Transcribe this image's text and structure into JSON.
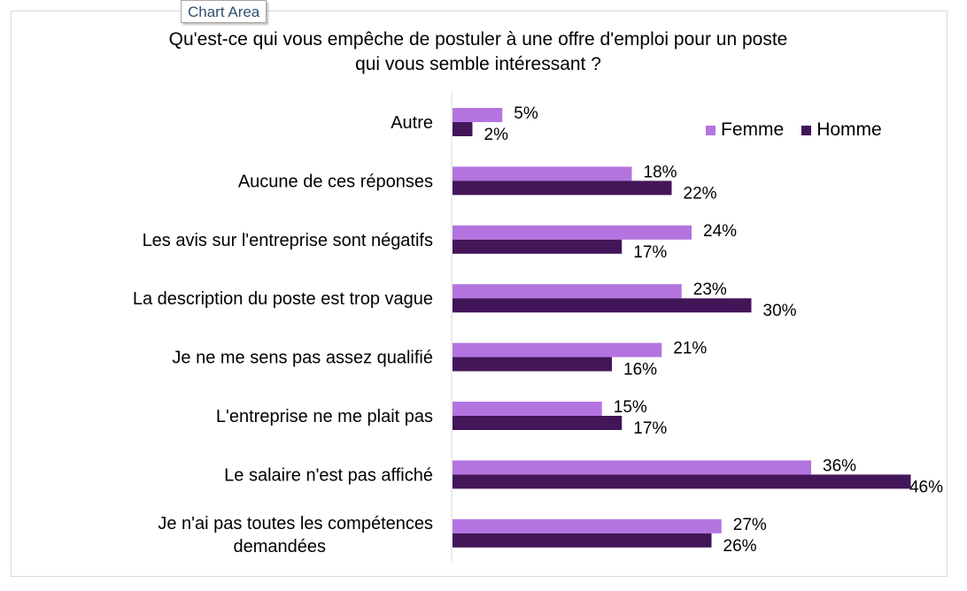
{
  "tooltip": "Chart Area",
  "chart_data": {
    "type": "bar",
    "orientation": "horizontal",
    "title_lines": [
      "Qu'est-ce qui vous empêche de postuler à une offre d'emploi pour un poste",
      "qui vous semble intéressant ?"
    ],
    "categories": [
      "Autre",
      "Aucune de ces réponses",
      "Les avis sur l'entreprise sont négatifs",
      "La description du poste est trop vague",
      "Je ne me sens pas assez qualifié",
      "L'entreprise ne me plait pas",
      "Le salaire n'est pas affiché",
      "Je n'ai pas toutes les compétences demandées"
    ],
    "series": [
      {
        "name": "Femme",
        "color": "#b474e0",
        "values": [
          5,
          18,
          24,
          23,
          21,
          15,
          36,
          27
        ],
        "labels": [
          "5%",
          "18%",
          "24%",
          "23%",
          "21%",
          "15%",
          "36%",
          "27%"
        ]
      },
      {
        "name": "Homme",
        "color": "#431559",
        "values": [
          2,
          22,
          17,
          30,
          16,
          17,
          46,
          26
        ],
        "labels": [
          "2%",
          "22%",
          "17%",
          "30%",
          "16%",
          "17%",
          "46%",
          "26%"
        ]
      }
    ],
    "value_unit": "%",
    "xlim": [
      0,
      46
    ],
    "legend_position": "top-right",
    "grid": false
  }
}
